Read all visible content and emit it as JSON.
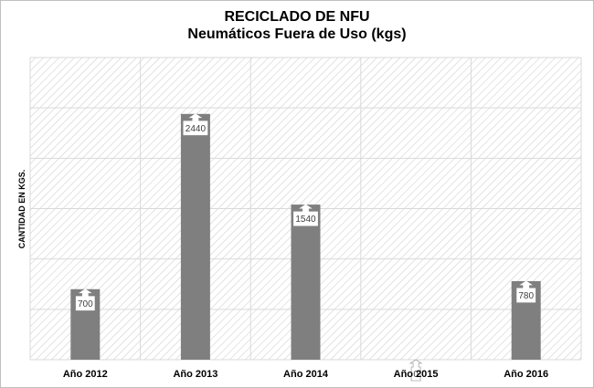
{
  "chart_data": {
    "type": "bar",
    "title": "RECICLADO DE NFU",
    "subtitle": "Neumáticos Fuera de Uso (kgs)",
    "ylabel": "CANTIDAD EN KGS.",
    "xlabel": "",
    "categories": [
      "Año 2012",
      "Año 2013",
      "Año 2014",
      "Año 2015",
      "Año 2016"
    ],
    "values": [
      700,
      2440,
      1540,
      0,
      780
    ],
    "ylim": [
      0,
      3000
    ],
    "grid": true,
    "legend": "none",
    "colors": {
      "bar": "#7f7f7f",
      "grid": "#d9d9d9",
      "hatch": "#d0d0d0"
    }
  }
}
